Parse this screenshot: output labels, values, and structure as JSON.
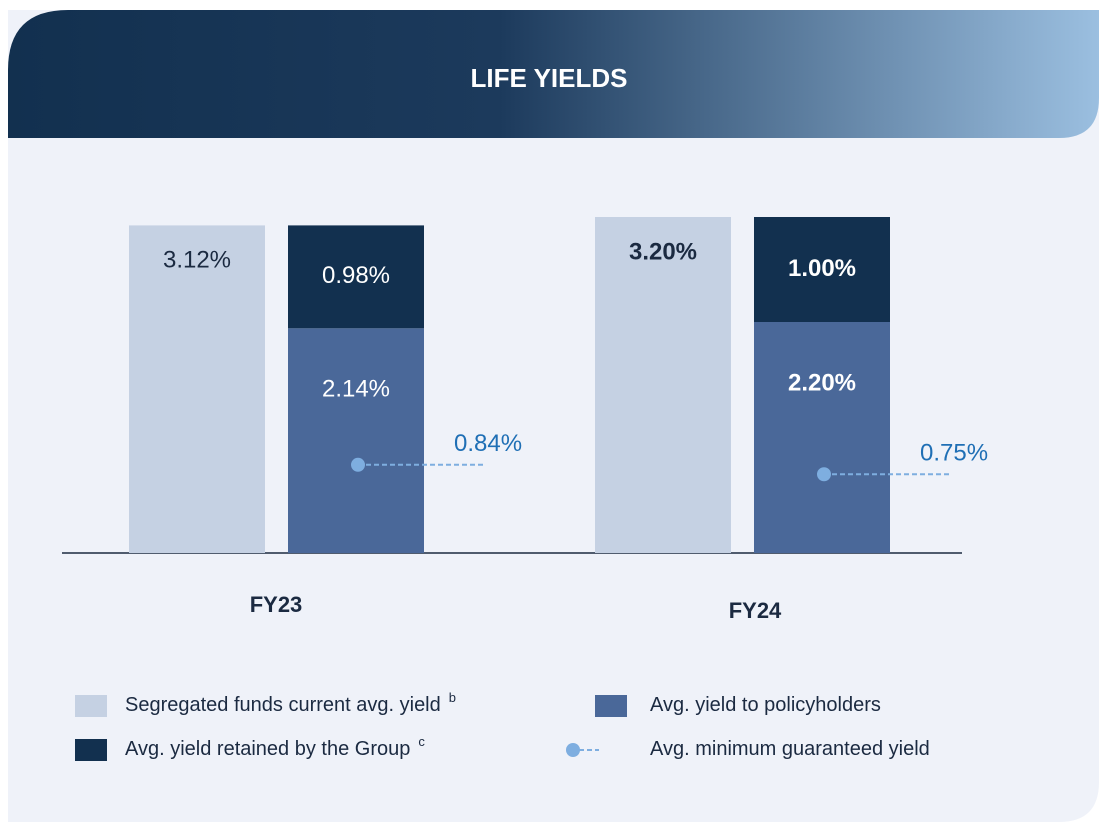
{
  "chart_data": {
    "type": "bar",
    "title": "LIFE YIELDS",
    "categories": [
      "FY23",
      "FY24"
    ],
    "ylim": [
      0,
      3.4
    ],
    "series": [
      {
        "name": "Segregated funds current avg. yield",
        "footnote": "b",
        "color": "#c5d1e3",
        "values": [
          3.12,
          3.2
        ],
        "value_labels": [
          "3.12%",
          "3.20%"
        ]
      },
      {
        "name": "Avg. yield to policyholders",
        "color": "#4a6899",
        "values": [
          2.14,
          2.2
        ],
        "value_labels": [
          "2.14%",
          "2.20%"
        ]
      },
      {
        "name": "Avg. yield retained by the Group",
        "footnote": "c",
        "color": "#12304f",
        "values": [
          0.98,
          1.0
        ],
        "value_labels": [
          "0.98%",
          "1.00%"
        ]
      },
      {
        "name": "Avg. minimum guaranteed yield",
        "color": "#7eaee0",
        "values": [
          0.84,
          0.75
        ],
        "value_labels": [
          "0.84%",
          "0.75%"
        ]
      }
    ]
  }
}
